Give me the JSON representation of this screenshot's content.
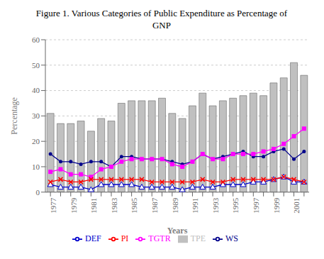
{
  "chart_data": {
    "type": "bar",
    "title": "Figure 1. Various Categories of Public Expenditure as Percentage of GNP",
    "categories": [
      1977,
      null,
      1979,
      null,
      1981,
      null,
      1983,
      null,
      1985,
      null,
      1987,
      null,
      1989,
      null,
      1991,
      null,
      1993,
      null,
      1995,
      null,
      1997,
      null,
      1999,
      null,
      2001,
      null
    ],
    "series": [
      {
        "name": "TPE",
        "type": "bar",
        "color": "#c0c0c0",
        "values": [
          31,
          27,
          27,
          28,
          24,
          29,
          28,
          35,
          36,
          36,
          36,
          37,
          31,
          29,
          34,
          39,
          34,
          36,
          37,
          38,
          39,
          38,
          43,
          45,
          51,
          46
        ]
      },
      {
        "name": "WS",
        "type": "line",
        "color": "#00008B",
        "marker": "circle",
        "values": [
          15,
          12,
          12,
          11,
          12,
          12,
          10,
          14,
          14,
          13,
          13,
          13,
          12,
          11,
          12,
          15,
          13,
          14,
          15,
          16,
          14,
          14,
          16,
          17,
          13,
          16
        ]
      },
      {
        "name": "TGTR",
        "type": "line",
        "color": "#FF00FF",
        "marker": "square",
        "values": [
          8,
          9,
          7,
          7,
          6,
          9,
          10,
          12,
          13,
          13,
          13,
          13,
          11,
          10,
          12,
          15,
          13,
          13,
          15,
          15,
          15,
          16,
          17,
          19,
          22,
          25
        ]
      },
      {
        "name": "DEF",
        "type": "line",
        "color": "#0000CD",
        "marker": "triangle",
        "values": [
          3,
          2,
          2,
          2,
          1,
          3,
          3,
          3,
          3,
          2,
          2,
          2,
          2,
          1,
          2,
          2,
          2,
          3,
          3,
          3,
          4,
          4,
          5,
          6,
          4,
          4
        ]
      },
      {
        "name": "PI",
        "type": "line",
        "color": "#FF0000",
        "marker": "x",
        "values": [
          4,
          5,
          4,
          4,
          5,
          5,
          5,
          5,
          5,
          5,
          4,
          4,
          4,
          4,
          4,
          5,
          4,
          4,
          5,
          5,
          5,
          5,
          5,
          6,
          5,
          4
        ]
      }
    ],
    "xlabel": "Years",
    "ylabel": "Percentage",
    "ylim": [
      0,
      60
    ],
    "yticks": [
      0,
      10,
      20,
      30,
      40,
      50,
      60
    ],
    "grid": true,
    "legend": "bottom"
  }
}
